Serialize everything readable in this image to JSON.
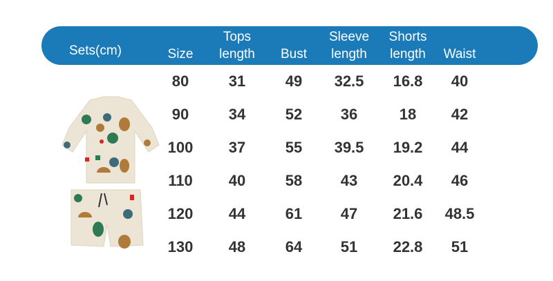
{
  "header": {
    "sets": "Sets(cm)",
    "columns": [
      {
        "line1": "",
        "line2": "Size"
      },
      {
        "line1": "Tops",
        "line2": "length"
      },
      {
        "line1": "",
        "line2": "Bust"
      },
      {
        "line1": "Sleeve",
        "line2": "length"
      },
      {
        "line1": "Shorts",
        "line2": "length"
      },
      {
        "line1": "",
        "line2": "Waist"
      }
    ]
  },
  "rows": [
    [
      "80",
      "31",
      "49",
      "32.5",
      "16.8",
      "40"
    ],
    [
      "90",
      "34",
      "52",
      "36",
      "18",
      "42"
    ],
    [
      "100",
      "37",
      "55",
      "39.5",
      "19.2",
      "44"
    ],
    [
      "110",
      "40",
      "58",
      "43",
      "20.4",
      "46"
    ],
    [
      "120",
      "44",
      "61",
      "47",
      "21.6",
      "48.5"
    ],
    [
      "130",
      "48",
      "64",
      "51",
      "22.8",
      "51"
    ]
  ],
  "colors": {
    "header_bg": "#1b7bb9",
    "text": "#333333"
  }
}
